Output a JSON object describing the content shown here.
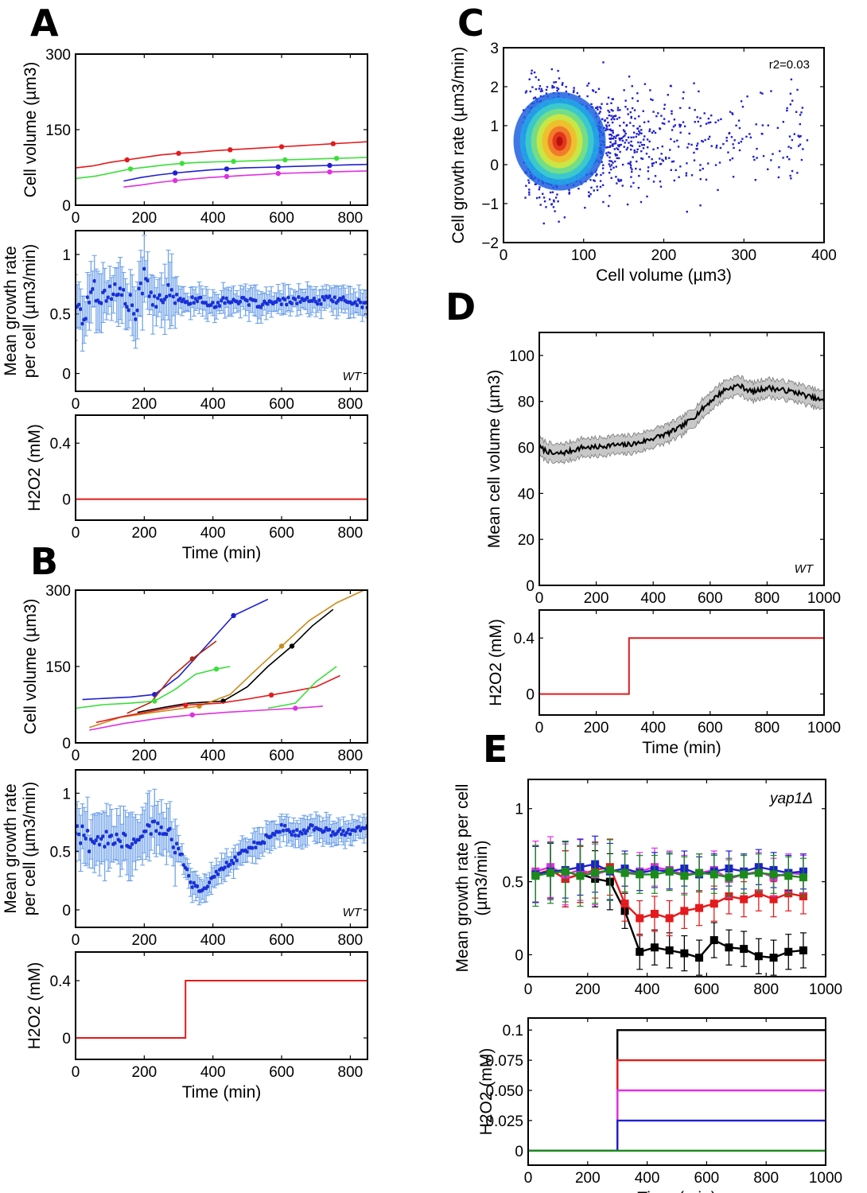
{
  "panels": {
    "A": "A",
    "B": "B",
    "C": "C",
    "D": "D",
    "E": "E"
  },
  "colors": {
    "red": "#e41a1c",
    "green": "#3adf3a",
    "blue": "#1f1fd0",
    "magenta": "#e030e0",
    "black": "#000000",
    "orange": "#c98b1a",
    "darkred": "#b02a10",
    "errorbar": "#6a9ee8",
    "meanpoint": "#1a2fd8",
    "h2o2": "#e41a1c",
    "darkgreen": "#1b8a1b"
  },
  "chart_data": [
    {
      "id": "A-top",
      "type": "line",
      "title": "",
      "xlabel": "",
      "ylabel": "Cell volume (µm3)",
      "xlim": [
        0,
        850
      ],
      "ylim": [
        0,
        300
      ],
      "xticks": [
        "0",
        "200",
        "400",
        "600",
        "800"
      ],
      "yticks": [
        "0",
        "150",
        "300"
      ],
      "series": [
        {
          "name": "lineage-red",
          "color": "red",
          "x": [
            0,
            50,
            100,
            150,
            200,
            250,
            300,
            350,
            400,
            450,
            500,
            550,
            600,
            650,
            700,
            750,
            800,
            850
          ],
          "y": [
            74,
            78,
            85,
            90,
            95,
            100,
            103,
            105,
            108,
            110,
            112,
            114,
            116,
            118,
            120,
            122,
            124,
            126
          ]
        },
        {
          "name": "lineage-green",
          "color": "green",
          "x": [
            0,
            60,
            110,
            160,
            210,
            260,
            310,
            360,
            410,
            460,
            510,
            560,
            610,
            660,
            710,
            760,
            810,
            850
          ],
          "y": [
            53,
            58,
            65,
            72,
            76,
            80,
            83,
            85,
            86,
            87,
            88,
            89,
            90,
            91,
            92,
            93,
            94,
            95
          ]
        },
        {
          "name": "lineage-blue",
          "color": "blue",
          "x": [
            140,
            190,
            240,
            290,
            340,
            390,
            440,
            490,
            540,
            590,
            640,
            690,
            740,
            790,
            850
          ],
          "y": [
            48,
            55,
            60,
            64,
            67,
            70,
            72,
            74,
            75,
            76,
            77,
            78,
            79,
            80,
            81
          ]
        },
        {
          "name": "lineage-magenta",
          "color": "magenta",
          "x": [
            140,
            190,
            240,
            290,
            340,
            390,
            440,
            490,
            540,
            590,
            640,
            690,
            740,
            790,
            850
          ],
          "y": [
            36,
            40,
            45,
            49,
            52,
            55,
            57,
            59,
            61,
            63,
            64,
            65,
            66,
            67,
            68
          ]
        }
      ]
    },
    {
      "id": "A-mid",
      "type": "scatter",
      "xlabel": "",
      "ylabel": [
        "Mean growth rate",
        "per cell (µm3/min)"
      ],
      "xlim": [
        0,
        850
      ],
      "ylim": [
        -0.15,
        1.2
      ],
      "xticks": [
        "0",
        "200",
        "400",
        "600",
        "800"
      ],
      "yticks": [
        "0",
        "0.5",
        "1"
      ],
      "annotation": "WT",
      "mean": {
        "x": [
          0,
          25,
          50,
          75,
          100,
          125,
          150,
          175,
          200,
          225,
          250,
          275,
          300,
          350,
          400,
          450,
          500,
          550,
          600,
          650,
          700,
          750,
          800,
          850
        ],
        "y": [
          0.6,
          0.45,
          0.75,
          0.62,
          0.7,
          0.68,
          0.62,
          0.5,
          0.82,
          0.65,
          0.55,
          0.72,
          0.6,
          0.62,
          0.58,
          0.62,
          0.6,
          0.58,
          0.6,
          0.62,
          0.6,
          0.63,
          0.6,
          0.58
        ]
      }
    },
    {
      "id": "A-bot",
      "type": "line",
      "xlabel": "Time (min)",
      "ylabel": "H2O2 (mM)",
      "xlim": [
        0,
        850
      ],
      "ylim": [
        -0.15,
        0.6
      ],
      "xticks": [
        "0",
        "200",
        "400",
        "600",
        "800"
      ],
      "yticks": [
        "0",
        "0.4"
      ],
      "series": [
        {
          "name": "H2O2",
          "color": "h2o2",
          "x": [
            0,
            850
          ],
          "y": [
            0,
            0
          ]
        }
      ]
    },
    {
      "id": "B-top",
      "type": "line",
      "xlabel": "",
      "ylabel": "Cell volume (µm3)",
      "xlim": [
        0,
        850
      ],
      "ylim": [
        0,
        300
      ],
      "xticks": [
        "0",
        "200",
        "400",
        "600",
        "800"
      ],
      "yticks": [
        "0",
        "150",
        "300"
      ],
      "series": [
        {
          "name": "lineage-blue",
          "color": "blue",
          "x": [
            20,
            100,
            160,
            230,
            300,
            380,
            460,
            560
          ],
          "y": [
            85,
            88,
            90,
            95,
            130,
            190,
            250,
            282
          ]
        },
        {
          "name": "lineage-darkred",
          "color": "darkred",
          "x": [
            150,
            220,
            280,
            340,
            410
          ],
          "y": [
            58,
            80,
            130,
            165,
            200
          ]
        },
        {
          "name": "lineage-green1",
          "color": "green",
          "x": [
            0,
            80,
            160,
            230,
            290,
            350,
            410,
            450
          ],
          "y": [
            68,
            75,
            78,
            82,
            105,
            135,
            145,
            150
          ]
        },
        {
          "name": "lineage-black",
          "color": "black",
          "x": [
            180,
            260,
            330,
            430,
            500,
            560,
            630,
            690,
            750
          ],
          "y": [
            60,
            70,
            78,
            82,
            110,
            150,
            190,
            230,
            262
          ]
        },
        {
          "name": "lineage-orange",
          "color": "orange",
          "x": [
            40,
            130,
            230,
            360,
            450,
            520,
            600,
            680,
            760,
            840
          ],
          "y": [
            30,
            50,
            60,
            72,
            95,
            140,
            190,
            240,
            275,
            300
          ]
        },
        {
          "name": "lineage-red",
          "color": "red",
          "x": [
            60,
            140,
            220,
            320,
            420,
            500,
            570,
            640,
            700,
            770
          ],
          "y": [
            40,
            52,
            62,
            74,
            78,
            86,
            94,
            102,
            110,
            132
          ]
        },
        {
          "name": "lineage-green2",
          "color": "green",
          "x": [
            560,
            640,
            700,
            760
          ],
          "y": [
            68,
            78,
            120,
            150
          ]
        },
        {
          "name": "lineage-magenta",
          "color": "magenta",
          "x": [
            40,
            140,
            240,
            340,
            440,
            540,
            640,
            720
          ],
          "y": [
            25,
            38,
            48,
            55,
            60,
            64,
            68,
            72
          ]
        }
      ]
    },
    {
      "id": "B-mid",
      "type": "scatter",
      "xlabel": "",
      "ylabel": [
        "Mean growth rate",
        "per cell (µm3/min)"
      ],
      "xlim": [
        0,
        850
      ],
      "ylim": [
        -0.15,
        1.2
      ],
      "xticks": [
        "0",
        "200",
        "400",
        "600",
        "800"
      ],
      "yticks": [
        "0",
        "0.5",
        "1"
      ],
      "annotation": "WT",
      "mean": {
        "x": [
          0,
          50,
          100,
          150,
          200,
          250,
          300,
          320,
          340,
          360,
          380,
          400,
          450,
          500,
          550,
          600,
          650,
          700,
          750,
          800,
          850
        ],
        "y": [
          0.7,
          0.55,
          0.65,
          0.6,
          0.68,
          0.7,
          0.55,
          0.35,
          0.22,
          0.18,
          0.2,
          0.28,
          0.4,
          0.52,
          0.6,
          0.7,
          0.65,
          0.72,
          0.65,
          0.68,
          0.7
        ]
      }
    },
    {
      "id": "B-bot",
      "type": "line",
      "xlabel": "Time (min)",
      "ylabel": "H2O2 (mM)",
      "xlim": [
        0,
        850
      ],
      "ylim": [
        -0.15,
        0.6
      ],
      "xticks": [
        "0",
        "200",
        "400",
        "600",
        "800"
      ],
      "yticks": [
        "0",
        "0.4"
      ],
      "series": [
        {
          "name": "H2O2",
          "color": "h2o2",
          "x": [
            0,
            320,
            320,
            850
          ],
          "y": [
            0,
            0,
            0.4,
            0.4
          ]
        }
      ]
    },
    {
      "id": "C",
      "type": "scatter",
      "xlabel": "Cell volume (µm3)",
      "ylabel": "Cell growth rate (µm3/min)",
      "xlim": [
        0,
        400
      ],
      "ylim": [
        -2,
        3
      ],
      "xticks": [
        "0",
        "100",
        "200",
        "300",
        "400"
      ],
      "yticks": [
        "−2",
        "−1",
        "0",
        "1",
        "2",
        "3"
      ],
      "annotation": "r2=0.03",
      "density_center": {
        "x": 70,
        "y": 0.6
      }
    },
    {
      "id": "D-top",
      "type": "line",
      "xlabel": "",
      "ylabel": "Mean cell volume (µm3)",
      "xlim": [
        0,
        1000
      ],
      "ylim": [
        0,
        110
      ],
      "xticks": [
        "0",
        "200",
        "400",
        "600",
        "800",
        "1000"
      ],
      "yticks": [
        "0",
        "20",
        "40",
        "60",
        "80",
        "100"
      ],
      "annotation": "WT",
      "series": [
        {
          "name": "mean-volume",
          "color": "black",
          "x": [
            0,
            50,
            100,
            150,
            200,
            250,
            300,
            350,
            400,
            450,
            500,
            550,
            600,
            650,
            700,
            750,
            800,
            850,
            900,
            950,
            1000
          ],
          "y": [
            60,
            57,
            58,
            60,
            60,
            61,
            61,
            62,
            64,
            66,
            69,
            74,
            80,
            85,
            87,
            84,
            86,
            85,
            84,
            82,
            80
          ]
        }
      ],
      "band_halfwidth": 4
    },
    {
      "id": "D-bot",
      "type": "line",
      "xlabel": "Time (min)",
      "ylabel": "H2O2 (mM)",
      "xlim": [
        0,
        1000
      ],
      "ylim": [
        -0.15,
        0.6
      ],
      "xticks": [
        "0",
        "200",
        "400",
        "600",
        "800",
        "1000"
      ],
      "yticks": [
        "0",
        "0.4"
      ],
      "series": [
        {
          "name": "H2O2",
          "color": "h2o2",
          "x": [
            0,
            315,
            315,
            1000
          ],
          "y": [
            0,
            0,
            0.4,
            0.4
          ]
        }
      ]
    },
    {
      "id": "E-top",
      "type": "line",
      "xlabel": "",
      "ylabel": [
        "Mean growth rate per cell",
        "(µm3/min)"
      ],
      "xlim": [
        0,
        1000
      ],
      "ylim": [
        -0.15,
        1.2
      ],
      "xticks": [
        "0",
        "200",
        "400",
        "600",
        "800",
        "1000"
      ],
      "yticks": [
        "0",
        "0.5",
        "1"
      ],
      "annotation": "yap1Δ",
      "x": [
        25,
        75,
        125,
        175,
        225,
        275,
        325,
        375,
        425,
        475,
        525,
        575,
        625,
        675,
        725,
        775,
        825,
        875,
        925
      ],
      "series": [
        {
          "name": "0.1 mM",
          "color": "black",
          "y": [
            0.55,
            0.58,
            0.52,
            0.55,
            0.52,
            0.5,
            0.3,
            0.02,
            0.05,
            0.03,
            0.01,
            -0.02,
            0.1,
            0.05,
            0.04,
            -0.01,
            -0.02,
            0.02,
            0.03
          ],
          "err": 0.12
        },
        {
          "name": "0.075 mM",
          "color": "red",
          "y": [
            0.55,
            0.58,
            0.52,
            0.55,
            0.58,
            0.6,
            0.35,
            0.25,
            0.28,
            0.25,
            0.3,
            0.32,
            0.35,
            0.4,
            0.38,
            0.42,
            0.38,
            0.42,
            0.4
          ],
          "err": 0.12
        },
        {
          "name": "0.050 mM",
          "color": "magenta",
          "y": [
            0.57,
            0.6,
            0.55,
            0.58,
            0.55,
            0.58,
            0.56,
            0.57,
            0.6,
            0.58,
            0.55,
            0.56,
            0.58,
            0.52,
            0.55,
            0.57,
            0.53,
            0.56,
            0.55
          ],
          "err": 0.13
        },
        {
          "name": "0.025 mM",
          "color": "blue",
          "y": [
            0.55,
            0.57,
            0.58,
            0.6,
            0.62,
            0.57,
            0.59,
            0.56,
            0.58,
            0.57,
            0.59,
            0.55,
            0.57,
            0.59,
            0.57,
            0.6,
            0.58,
            0.56,
            0.57
          ],
          "err": 0.12
        },
        {
          "name": "0 mM",
          "color": "darkgreen",
          "y": [
            0.54,
            0.56,
            0.57,
            0.54,
            0.56,
            0.58,
            0.56,
            0.55,
            0.55,
            0.57,
            0.54,
            0.56,
            0.55,
            0.53,
            0.55,
            0.56,
            0.55,
            0.54,
            0.53
          ],
          "err": 0.13
        }
      ]
    },
    {
      "id": "E-bot",
      "type": "line",
      "xlabel": "Time (min)",
      "ylabel": "H2O2 (mM)",
      "xlim": [
        0,
        1000
      ],
      "ylim": [
        -0.012,
        0.11
      ],
      "xticks": [
        "0",
        "200",
        "400",
        "600",
        "800",
        "1000"
      ],
      "yticks": [
        "0",
        "0.025",
        "0.050",
        "0.075",
        "0.1"
      ],
      "series": [
        {
          "name": "0.1 mM",
          "color": "black",
          "x": [
            0,
            300,
            300,
            1000
          ],
          "y": [
            0,
            0,
            0.1,
            0.1
          ]
        },
        {
          "name": "0.075 mM",
          "color": "red",
          "x": [
            0,
            300,
            300,
            1000
          ],
          "y": [
            0,
            0,
            0.075,
            0.075
          ]
        },
        {
          "name": "0.050 mM",
          "color": "magenta",
          "x": [
            0,
            300,
            300,
            1000
          ],
          "y": [
            0,
            0,
            0.05,
            0.05
          ]
        },
        {
          "name": "0.025 mM",
          "color": "blue",
          "x": [
            0,
            300,
            300,
            1000
          ],
          "y": [
            0,
            0,
            0.025,
            0.025
          ]
        },
        {
          "name": "0 mM",
          "color": "darkgreen",
          "x": [
            0,
            1000
          ],
          "y": [
            0,
            0
          ]
        }
      ]
    }
  ]
}
